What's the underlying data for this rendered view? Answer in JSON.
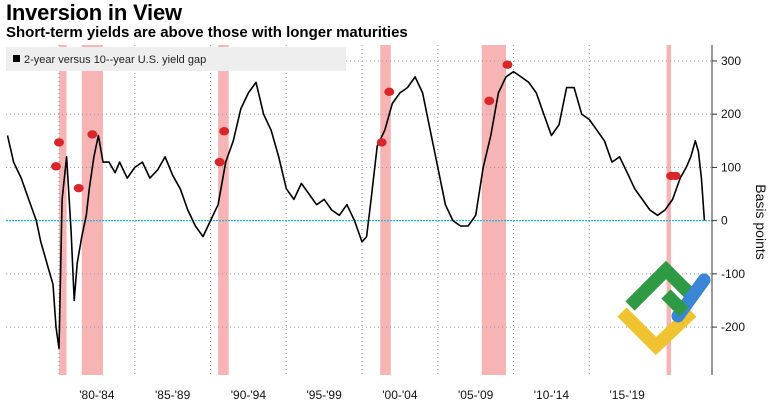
{
  "header": {
    "title": "Inversion in View",
    "subtitle": "Short-term yields are above those with longer maturities"
  },
  "chart_data": {
    "type": "line",
    "legend": "2-year versus 10--year U.S. yield gap",
    "ylabel": "Basis points",
    "ylim": [
      -290,
      330
    ],
    "xlim": [
      1976.5,
      2023.1
    ],
    "y_ticks": [
      300,
      200,
      100,
      0,
      -100,
      -200
    ],
    "y_tick_labels": [
      "300",
      "200",
      "100",
      "0",
      "-100",
      "-200"
    ],
    "x_ticks": [
      1980,
      1985,
      1990,
      1995,
      2000,
      2005,
      2010,
      2015
    ],
    "x_tick_labels": [
      "'80-'84",
      "'85-'89",
      "'90-'94",
      "'95-'99",
      "'00-'04",
      "'05-'09",
      "'10-'14",
      "'15-'19"
    ],
    "zero_line_color": "#22bcd6",
    "line_color": "#000000",
    "recession_color": "#f6b4b4",
    "marker_color": "#d9262a",
    "recessions": [
      {
        "start": 1980.0,
        "end": 1980.5
      },
      {
        "start": 1981.5,
        "end": 1982.9
      },
      {
        "start": 1990.5,
        "end": 1991.2
      },
      {
        "start": 2001.2,
        "end": 2001.9
      },
      {
        "start": 2007.9,
        "end": 2009.5
      },
      {
        "start": 2020.1,
        "end": 2020.4
      }
    ],
    "markers": [
      {
        "x": 1979.8,
        "y": 102
      },
      {
        "x": 1980.0,
        "y": 147
      },
      {
        "x": 1981.3,
        "y": 61
      },
      {
        "x": 1982.2,
        "y": 162
      },
      {
        "x": 1990.6,
        "y": 110
      },
      {
        "x": 1990.9,
        "y": 168
      },
      {
        "x": 2001.3,
        "y": 147
      },
      {
        "x": 2001.8,
        "y": 242
      },
      {
        "x": 2008.4,
        "y": 225
      },
      {
        "x": 2009.6,
        "y": 293
      },
      {
        "x": 2020.4,
        "y": 84
      },
      {
        "x": 2020.7,
        "y": 84
      }
    ],
    "series": [
      {
        "x": [
          1976.6,
          1977.0,
          1977.5,
          1978.0,
          1978.5,
          1978.8,
          1979.0,
          1979.3,
          1979.6,
          1979.8,
          1980.0,
          1980.2,
          1980.5,
          1980.8,
          1981.0,
          1981.2,
          1981.5,
          1981.8,
          1982.0,
          1982.3,
          1982.6,
          1982.9,
          1983.3,
          1983.7,
          1984.0,
          1984.5,
          1985.0,
          1985.5,
          1986.0,
          1986.5,
          1987.0,
          1987.5,
          1988.0,
          1988.5,
          1989.0,
          1989.5,
          1990.0,
          1990.5,
          1991.0,
          1991.5,
          1992.0,
          1992.5,
          1993.0,
          1993.5,
          1994.0,
          1994.5,
          1995.0,
          1995.5,
          1996.0,
          1996.5,
          1997.0,
          1997.5,
          1998.0,
          1998.5,
          1999.0,
          1999.5,
          2000.0,
          2000.3,
          2000.6,
          2001.0,
          2001.5,
          2002.0,
          2002.5,
          2003.0,
          2003.5,
          2004.0,
          2004.5,
          2005.0,
          2005.5,
          2006.0,
          2006.5,
          2007.0,
          2007.5,
          2008.0,
          2008.5,
          2009.0,
          2009.5,
          2010.0,
          2010.5,
          2011.0,
          2011.5,
          2012.0,
          2012.5,
          2013.0,
          2013.5,
          2014.0,
          2014.5,
          2015.0,
          2015.5,
          2016.0,
          2016.5,
          2017.0,
          2017.5,
          2018.0,
          2018.5,
          2019.0,
          2019.5,
          2020.0,
          2020.5,
          2021.0,
          2021.4,
          2021.7,
          2022.0,
          2022.2,
          2022.4,
          2022.6
        ],
        "y": [
          160,
          110,
          80,
          40,
          0,
          -40,
          -60,
          -90,
          -120,
          -200,
          -240,
          40,
          120,
          -20,
          -150,
          -80,
          -30,
          10,
          60,
          120,
          160,
          110,
          110,
          90,
          110,
          80,
          100,
          110,
          80,
          95,
          120,
          85,
          60,
          20,
          -10,
          -30,
          0,
          30,
          110,
          150,
          210,
          240,
          260,
          200,
          170,
          120,
          60,
          40,
          70,
          50,
          30,
          40,
          20,
          10,
          30,
          0,
          -40,
          -30,
          40,
          140,
          170,
          220,
          240,
          250,
          270,
          240,
          170,
          100,
          30,
          0,
          -10,
          -10,
          10,
          100,
          160,
          240,
          270,
          280,
          270,
          260,
          240,
          200,
          160,
          180,
          250,
          250,
          200,
          190,
          170,
          150,
          110,
          120,
          90,
          60,
          40,
          20,
          10,
          20,
          40,
          80,
          100,
          120,
          150,
          130,
          80,
          0
        ]
      }
    ]
  }
}
